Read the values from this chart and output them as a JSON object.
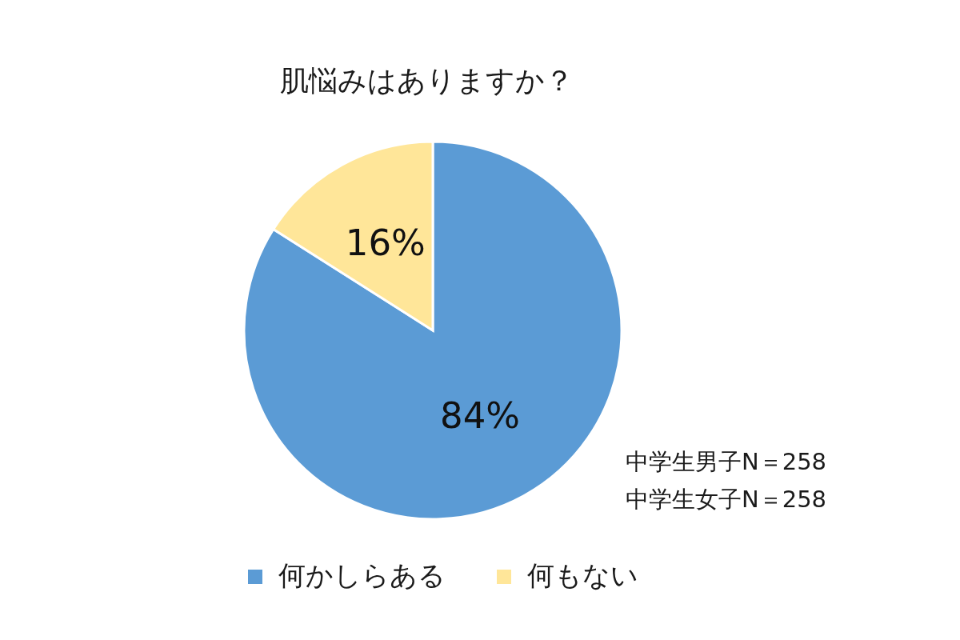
{
  "chart_data": {
    "type": "pie",
    "title": "肌悩みはありますか？",
    "categories": [
      "何かしらある",
      "何もない"
    ],
    "values": [
      84,
      16
    ],
    "colors": [
      "#5b9bd5",
      "#ffe699"
    ],
    "value_labels": [
      "84%",
      "16%"
    ],
    "legend": "bottom",
    "annotations": [
      "中学生男子N＝258",
      "中学生女子N＝258"
    ]
  }
}
